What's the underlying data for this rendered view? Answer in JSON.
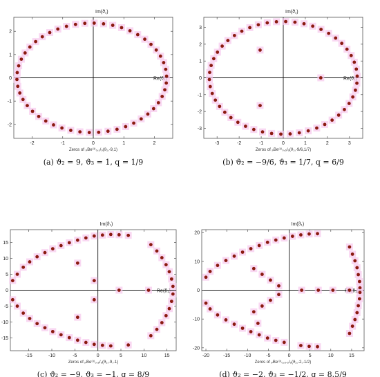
{
  "chart_data": [
    {
      "type": "scatter",
      "id": "a",
      "caption": "(a) ϑ₂ = 9, ϑ₃ = 1, q = 1/9",
      "xlabel": "Zeros of ₚBe⁽³⁾₀,₁/₉(ϑ₁,-9,1)",
      "ylabel": "Im(ϑ₁)",
      "axis_right_label": "Re(ϑ₁)",
      "xlim": [
        -2.6,
        2.6
      ],
      "ylim": [
        -2.6,
        2.6
      ],
      "xticks": [
        -2,
        -1,
        0,
        1,
        2
      ],
      "yticks": [
        -2,
        -1,
        0,
        1,
        2
      ],
      "shape": "ellipse",
      "ellipse": {
        "cx": -0.05,
        "cy": 0,
        "rx": 2.45,
        "ry": 2.35,
        "n": 50
      },
      "points": [],
      "marker_color": "#8b1a10",
      "halo_color": "#f6c8ec"
    },
    {
      "type": "scatter",
      "id": "b",
      "caption": "(b) ϑ₂ = −9/6, ϑ₃ = 1/7, q = 6/9",
      "xlabel": "Zeros of ₚBe⁽³⁾₀,₆/₉(ϑ₁,-9/6,1/7)",
      "ylabel": "Im(ϑ₁)",
      "axis_right_label": "Re(ϑ₁)",
      "xlim": [
        -3.6,
        3.6
      ],
      "ylim": [
        -3.6,
        3.6
      ],
      "xticks": [
        -3,
        -2,
        -1,
        0,
        1,
        2,
        3
      ],
      "yticks": [
        -3,
        -2,
        -1,
        0,
        1,
        2,
        3
      ],
      "shape": "ellipse",
      "ellipse": {
        "cx": 0,
        "cy": 0,
        "rx": 3.35,
        "ry": 3.35,
        "n": 50
      },
      "points": [
        [
          -1.05,
          1.65
        ],
        [
          -1.05,
          -1.65
        ],
        [
          1.7,
          0
        ]
      ],
      "marker_color": "#8b1a10",
      "halo_color": "#f6c8ec"
    },
    {
      "type": "scatter",
      "id": "c",
      "caption": "(c) ϑ₂ = −9, ϑ₃ = −1, q = 8/9",
      "xlabel": "Zeros of ₚBe⁽³⁾₀,₈/₉(ϑ₁,-9,-1)",
      "ylabel": "Im(ϑ₁)",
      "axis_right_label": "Re(ϑ₁)",
      "xlim": [
        -19,
        17
      ],
      "ylim": [
        -19,
        19
      ],
      "xticks": [
        -15,
        -10,
        -5,
        0,
        5,
        10,
        15
      ],
      "yticks": [
        -15,
        -10,
        -5,
        0,
        5,
        10,
        15
      ],
      "shape": "upper-lower-arcs",
      "points": [
        [
          -18.5,
          3
        ],
        [
          -17.5,
          5
        ],
        [
          -16.2,
          7.2
        ],
        [
          -14.8,
          8.9
        ],
        [
          -13.2,
          10.5
        ],
        [
          -11.5,
          11.8
        ],
        [
          -9.8,
          13
        ],
        [
          -8,
          14
        ],
        [
          -6.2,
          14.9
        ],
        [
          -4.4,
          15.7
        ],
        [
          -2.6,
          16.4
        ],
        [
          -0.8,
          17
        ],
        [
          1,
          17.3
        ],
        [
          2.8,
          17.5
        ],
        [
          4.6,
          17.4
        ],
        [
          6.6,
          17.2
        ],
        [
          -18.5,
          -3
        ],
        [
          -17.5,
          -5
        ],
        [
          -16.2,
          -7.2
        ],
        [
          -14.8,
          -8.9
        ],
        [
          -13.2,
          -10.5
        ],
        [
          -11.5,
          -11.8
        ],
        [
          -9.8,
          -13
        ],
        [
          -8,
          -14
        ],
        [
          -6.2,
          -14.9
        ],
        [
          -4.4,
          -15.7
        ],
        [
          -2.6,
          -16.4
        ],
        [
          -0.8,
          -17
        ],
        [
          1,
          -17.3
        ],
        [
          2.8,
          -17.5
        ],
        [
          6.6,
          -17.2
        ],
        [
          11.5,
          14.3
        ],
        [
          12.8,
          12.3
        ],
        [
          13.9,
          10.2
        ],
        [
          14.8,
          8
        ],
        [
          15.5,
          5.8
        ],
        [
          16,
          3.5
        ],
        [
          16.3,
          1.2
        ],
        [
          16.3,
          -1.2
        ],
        [
          16,
          -3.5
        ],
        [
          15.5,
          -5.8
        ],
        [
          14.8,
          -8
        ],
        [
          13.9,
          -10.2
        ],
        [
          12.8,
          -12.3
        ],
        [
          11.5,
          -14.3
        ],
        [
          -4.4,
          8.5
        ],
        [
          -4.4,
          -8.5
        ],
        [
          -0.8,
          3
        ],
        [
          -0.8,
          -3
        ],
        [
          4.6,
          0
        ],
        [
          11,
          0
        ]
      ],
      "marker_color": "#8b1a10",
      "halo_color": "#f6c8ec"
    },
    {
      "type": "scatter",
      "id": "d",
      "caption": "(d) ϑ₂ = −2, ϑ₃ = −1/2, q = 8.5/9",
      "xlabel": "Zeros of ₚBe⁽³⁾₀,₈.₅/₉(ϑ₁,-2,-1/2)",
      "ylabel": "Im(ϑ₁)",
      "axis_right_label": "Re(ϑ₁)",
      "xlim": [
        -21,
        18
      ],
      "ylim": [
        -21,
        21
      ],
      "xticks": [
        -20,
        -15,
        -10,
        -5,
        0,
        5,
        10,
        15
      ],
      "yticks": [
        -20,
        -10,
        0,
        10,
        20
      ],
      "shape": "upper-lower-arcs",
      "points": [
        [
          -20,
          4.5
        ],
        [
          -19,
          6.5
        ],
        [
          -17.2,
          8.6
        ],
        [
          -15.2,
          10.3
        ],
        [
          -13.2,
          11.8
        ],
        [
          -11.2,
          13.2
        ],
        [
          -9.2,
          14.4
        ],
        [
          -7.2,
          15.5
        ],
        [
          -5.2,
          16.6
        ],
        [
          -3.2,
          17.4
        ],
        [
          -1.2,
          18.1
        ],
        [
          0.8,
          18.7
        ],
        [
          2.8,
          19.2
        ],
        [
          4.8,
          19.5
        ],
        [
          6.8,
          19.6
        ],
        [
          -20,
          -4.5
        ],
        [
          -19,
          -6.5
        ],
        [
          -17.2,
          -8.6
        ],
        [
          -15.2,
          -10.3
        ],
        [
          -13.2,
          -11.8
        ],
        [
          -11.2,
          -13.2
        ],
        [
          -9.2,
          -14.4
        ],
        [
          -7.2,
          -15.5
        ],
        [
          -5.2,
          -16.6
        ],
        [
          -3.2,
          -17.4
        ],
        [
          -1.2,
          -18.1
        ],
        [
          2.8,
          -19.2
        ],
        [
          4.8,
          -19.5
        ],
        [
          6.8,
          -19.6
        ],
        [
          14.5,
          15
        ],
        [
          15.2,
          12.5
        ],
        [
          15.8,
          10.2
        ],
        [
          16.3,
          7.8
        ],
        [
          16.6,
          5.4
        ],
        [
          16.9,
          3
        ],
        [
          17,
          0.8
        ],
        [
          17,
          -0.8
        ],
        [
          16.9,
          -3
        ],
        [
          16.6,
          -5.4
        ],
        [
          16.3,
          -7.8
        ],
        [
          15.8,
          -10.2
        ],
        [
          15.2,
          -12.5
        ],
        [
          14.5,
          -15
        ],
        [
          -8.5,
          7.5
        ],
        [
          -6.5,
          5.5
        ],
        [
          -4.5,
          3.5
        ],
        [
          -2.5,
          1.5
        ],
        [
          -8.5,
          -7.5
        ],
        [
          -6.5,
          -5.5
        ],
        [
          -4.5,
          -3.5
        ],
        [
          -2.5,
          -1.5
        ],
        [
          -7.5,
          -11.5
        ],
        [
          3,
          0
        ],
        [
          7,
          0
        ],
        [
          10.5,
          0
        ],
        [
          14.5,
          0
        ]
      ],
      "marker_color": "#8b1a10",
      "halo_color": "#f6c8ec"
    }
  ]
}
